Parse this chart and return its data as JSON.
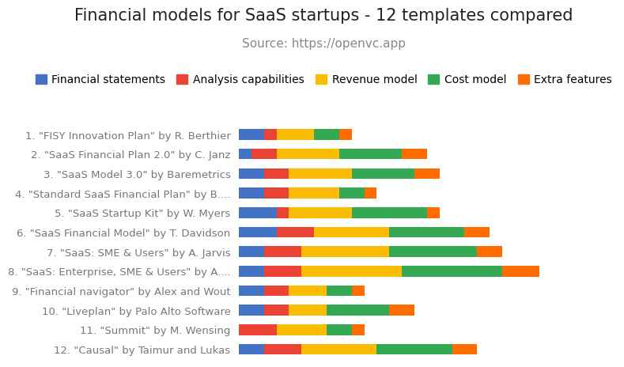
{
  "title": "Financial models for SaaS startups - 12 templates compared",
  "subtitle": "Source: https://openvc.app",
  "categories": [
    "1. \"FISY Innovation Plan\" by R. Berthier",
    "2. \"SaaS Financial Plan 2.0\" by C. Janz",
    "3. \"SaaS Model 3.0\" by Baremetrics",
    "4. \"Standard SaaS Financial Plan\" by B....",
    "5. \"SaaS Startup Kit\" by W. Myers",
    "6. \"SaaS Financial Model\" by T. Davidson",
    "7. \"SaaS: SME & Users\" by A. Jarvis",
    "8. \"SaaS: Enterprise, SME & Users\" by A....",
    "9. \"Financial navigator\" by Alex and Wout",
    "10. \"Liveplan\" by Palo Alto Software",
    "11. \"Summit\" by M. Wensing",
    "12. \"Causal\" by Taimur and Lukas"
  ],
  "series": {
    "Financial statements": {
      "color": "#4472C4",
      "values": [
        2,
        1,
        2,
        2,
        3,
        3,
        2,
        2,
        2,
        2,
        0,
        2
      ]
    },
    "Analysis capabilities": {
      "color": "#EA4335",
      "values": [
        1,
        2,
        2,
        2,
        1,
        3,
        3,
        3,
        2,
        2,
        3,
        3
      ]
    },
    "Revenue model": {
      "color": "#FBBC04",
      "values": [
        3,
        5,
        5,
        4,
        5,
        6,
        7,
        8,
        3,
        3,
        4,
        6
      ]
    },
    "Cost model": {
      "color": "#34A853",
      "values": [
        2,
        5,
        5,
        2,
        6,
        6,
        7,
        8,
        2,
        5,
        2,
        6
      ]
    },
    "Extra features": {
      "color": "#FF6D00",
      "values": [
        1,
        2,
        2,
        1,
        1,
        2,
        2,
        3,
        1,
        2,
        1,
        2
      ]
    }
  },
  "background_color": "#ffffff",
  "title_fontsize": 15,
  "subtitle_fontsize": 11,
  "label_fontsize": 9.5,
  "legend_fontsize": 10,
  "xlim": 30
}
